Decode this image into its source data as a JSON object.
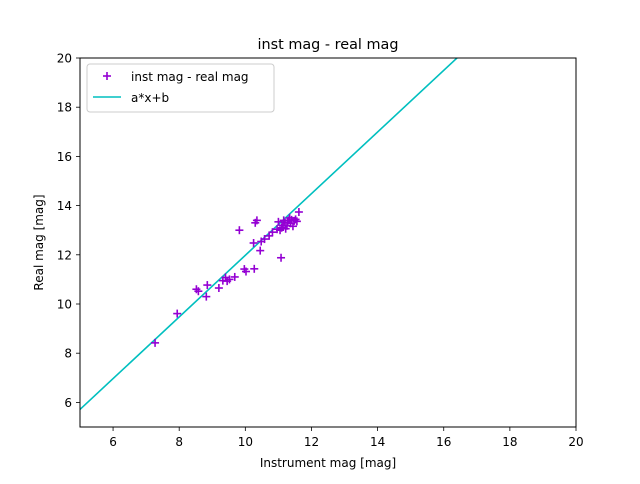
{
  "chart_data": {
    "type": "scatter",
    "title": "inst mag - real mag",
    "xlabel": "Instrument mag [mag]",
    "ylabel": "Real mag [mag]",
    "xlim": [
      5,
      20
    ],
    "ylim": [
      5,
      20
    ],
    "xticks": [
      6,
      8,
      10,
      12,
      14,
      16,
      18,
      20
    ],
    "yticks": [
      6,
      8,
      10,
      12,
      14,
      16,
      18,
      20
    ],
    "grid": false,
    "legend_position": "top-left",
    "series": [
      {
        "name": "inst mag - real mag",
        "kind": "scatter",
        "marker": "+",
        "color": "#9400d3",
        "points": [
          [
            7.27,
            8.42
          ],
          [
            7.94,
            9.61
          ],
          [
            8.52,
            10.6
          ],
          [
            8.58,
            10.52
          ],
          [
            8.82,
            10.3
          ],
          [
            8.85,
            10.77
          ],
          [
            9.2,
            10.65
          ],
          [
            9.32,
            10.95
          ],
          [
            9.4,
            11.08
          ],
          [
            9.45,
            10.93
          ],
          [
            9.52,
            11.0
          ],
          [
            9.68,
            11.1
          ],
          [
            9.82,
            13.0
          ],
          [
            9.97,
            11.42
          ],
          [
            10.02,
            11.32
          ],
          [
            10.27,
            11.43
          ],
          [
            10.25,
            12.48
          ],
          [
            10.3,
            13.3
          ],
          [
            10.35,
            13.4
          ],
          [
            10.45,
            12.17
          ],
          [
            10.48,
            12.54
          ],
          [
            10.58,
            12.64
          ],
          [
            10.72,
            12.77
          ],
          [
            10.82,
            12.92
          ],
          [
            10.96,
            13.04
          ],
          [
            11.0,
            13.34
          ],
          [
            11.05,
            13.0
          ],
          [
            11.08,
            11.88
          ],
          [
            11.1,
            13.1
          ],
          [
            11.14,
            13.2
          ],
          [
            11.16,
            13.4
          ],
          [
            11.2,
            13.3
          ],
          [
            11.22,
            13.06
          ],
          [
            11.26,
            13.18
          ],
          [
            11.28,
            13.32
          ],
          [
            11.31,
            13.4
          ],
          [
            11.34,
            13.5
          ],
          [
            11.37,
            13.28
          ],
          [
            11.4,
            13.42
          ],
          [
            11.44,
            13.16
          ],
          [
            11.48,
            13.38
          ],
          [
            11.52,
            13.44
          ],
          [
            11.56,
            13.36
          ],
          [
            11.62,
            13.74
          ]
        ]
      },
      {
        "name": "a*x+b",
        "kind": "line",
        "color": "#00bfbf",
        "slope": 1.253,
        "intercept": -0.55
      }
    ]
  }
}
